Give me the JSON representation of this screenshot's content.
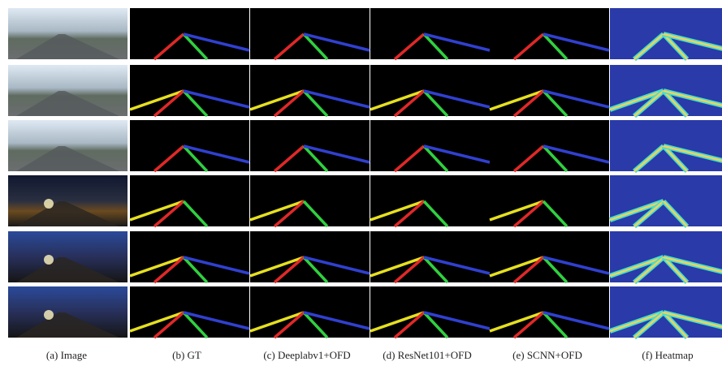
{
  "figure": {
    "captions": [
      "(a)  Image",
      "(b)  GT",
      "(c)  Deeplabv1+OFD",
      "(d)  ResNet101+OFD",
      "(e)  SCNN+OFD",
      "(f)  Heatmap"
    ]
  }
}
